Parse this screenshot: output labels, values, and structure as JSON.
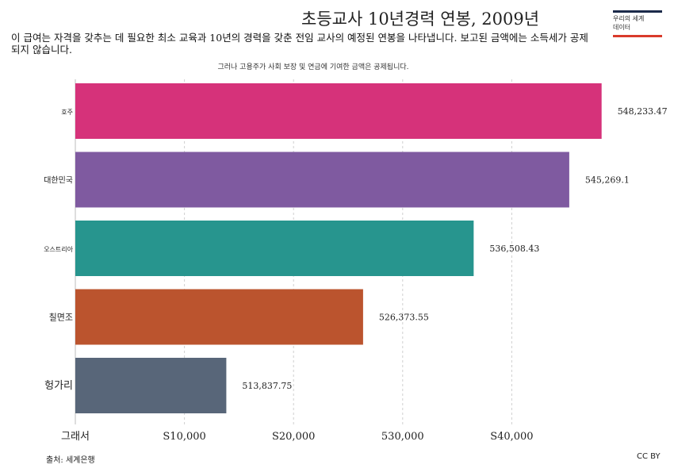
{
  "chart_data": {
    "type": "bar",
    "orientation": "horizontal",
    "title": "초등교사 10년경력 연봉, 2009년",
    "subtitle": "이 급여는 자격을 갖추는 데 필요한 최소 교육과 10년의 경력을 갖춘 전임 교사의 예정된 연봉을 나타냅니다. 보고된 금액에는 소득세가 공제되지 않습니다.",
    "note": "그러나 고용주가 사회 보장 및 연금에 기여한 금액은 공제됩니다.",
    "categories": [
      "호주",
      "대한민국",
      "오스트리아",
      "칠면조",
      "헝가리"
    ],
    "values": [
      48233.47,
      45269.1,
      36508.43,
      26373.55,
      13837.75
    ],
    "value_labels": [
      "548,233.47",
      "545,269.1",
      "536,508.43",
      "526,373.55",
      "513,837.75"
    ],
    "colors": [
      "#d6327a",
      "#7f5aa0",
      "#27958e",
      "#bb542e",
      "#586679"
    ],
    "category_font_sizes": [
      8,
      10,
      8,
      11,
      13
    ],
    "xlim": [
      0,
      50000
    ],
    "x_ticks": [
      0,
      10000,
      20000,
      30000,
      40000
    ],
    "x_tick_labels": [
      "그래서",
      "S10,000",
      "S20,000",
      "530,000",
      "S40,000"
    ],
    "grid": "vertical-dashed",
    "legend": "none"
  },
  "logo": {
    "line1": "우리의 세계",
    "line2": "데이터"
  },
  "source": "출처: 세계은행",
  "license": "CC BY"
}
